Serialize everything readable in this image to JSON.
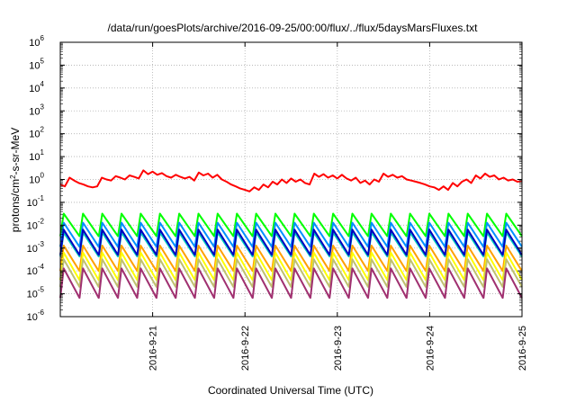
{
  "chart_data": {
    "type": "line",
    "title": "/data/run/goesPlots/archive/2016-09-25/00:00/flux/../flux/5daysMarsFluxes.txt",
    "xlabel": "Coordinated Universal Time (UTC)",
    "ylabel": "protons/cm2-s-sr-MeV",
    "ylabel_parts": {
      "pre": "protons/cm",
      "sup": "2",
      "post": "-s-sr-MeV"
    },
    "y_scale": "log",
    "ylim": [
      1e-06,
      1000000.0
    ],
    "y_ticks": [
      {
        "value": 1000000.0,
        "base": "10",
        "exp": "6"
      },
      {
        "value": 100000.0,
        "base": "10",
        "exp": "5"
      },
      {
        "value": 10000.0,
        "base": "10",
        "exp": "4"
      },
      {
        "value": 1000.0,
        "base": "10",
        "exp": "3"
      },
      {
        "value": 100.0,
        "base": "10",
        "exp": "2"
      },
      {
        "value": 10.0,
        "base": "10",
        "exp": "1"
      },
      {
        "value": 1,
        "base": "10",
        "exp": "0"
      },
      {
        "value": 0.1,
        "base": "10",
        "exp": "-1"
      },
      {
        "value": 0.01,
        "base": "10",
        "exp": "-2"
      },
      {
        "value": 0.001,
        "base": "10",
        "exp": "-3"
      },
      {
        "value": 0.0001,
        "base": "10",
        "exp": "-4"
      },
      {
        "value": 1e-05,
        "base": "10",
        "exp": "-5"
      },
      {
        "value": 1e-06,
        "base": "10",
        "exp": "-6"
      }
    ],
    "xlim": [
      "2016-09-20 00:00",
      "2016-09-25 00:00"
    ],
    "x_ticks": [
      "2016-9-21",
      "2016-9-22",
      "2016-9-23",
      "2016-9-24",
      "2016-9-25"
    ],
    "grid": true,
    "series": [
      {
        "color": "#ff0000",
        "x": [
          0,
          0.05,
          0.1,
          0.15,
          0.2,
          0.25,
          0.3,
          0.35,
          0.4,
          0.45,
          0.5,
          0.55,
          0.6,
          0.65,
          0.7,
          0.75,
          0.8,
          0.85,
          0.9,
          0.95,
          1.0,
          1.05,
          1.1,
          1.15,
          1.2,
          1.25,
          1.3,
          1.35,
          1.4,
          1.45,
          1.5,
          1.55,
          1.6,
          1.65,
          1.7,
          1.75,
          1.8,
          1.85,
          1.9,
          1.95,
          2.0,
          2.05,
          2.1,
          2.15,
          2.2,
          2.25,
          2.3,
          2.35,
          2.4,
          2.45,
          2.5,
          2.55,
          2.6,
          2.65,
          2.7,
          2.75,
          2.8,
          2.85,
          2.9,
          2.95,
          3.0,
          3.05,
          3.1,
          3.15,
          3.2,
          3.25,
          3.3,
          3.35,
          3.4,
          3.45,
          3.5,
          3.55,
          3.6,
          3.65,
          3.7,
          3.75,
          3.8,
          3.85,
          3.9,
          3.95,
          4.0,
          4.05,
          4.1,
          4.15,
          4.2,
          4.25,
          4.3,
          4.35,
          4.4,
          4.45,
          4.5,
          4.55,
          4.6,
          4.65,
          4.7,
          4.75,
          4.8,
          4.85,
          4.9,
          4.95,
          5.0
        ],
        "y": [
          0.6,
          0.5,
          1.2,
          0.9,
          0.7,
          0.6,
          0.5,
          0.45,
          0.5,
          1.2,
          1.0,
          0.9,
          1.4,
          1.2,
          1.0,
          1.5,
          1.3,
          1.1,
          2.5,
          1.7,
          2.2,
          1.6,
          1.9,
          1.4,
          1.2,
          1.6,
          1.3,
          1.1,
          1.3,
          0.9,
          2.0,
          1.5,
          1.8,
          1.2,
          1.6,
          1.0,
          0.8,
          0.6,
          0.5,
          0.4,
          0.35,
          0.3,
          0.45,
          0.35,
          0.6,
          0.45,
          0.8,
          0.6,
          1.0,
          0.7,
          1.1,
          0.8,
          1.0,
          0.7,
          0.6,
          1.8,
          1.3,
          1.7,
          1.2,
          1.5,
          1.1,
          1.6,
          1.1,
          0.9,
          1.2,
          0.7,
          0.9,
          0.6,
          1.0,
          0.8,
          1.8,
          1.3,
          1.6,
          1.2,
          1.4,
          1.0,
          0.9,
          0.8,
          0.7,
          0.6,
          0.5,
          0.45,
          0.35,
          0.5,
          0.35,
          0.7,
          0.5,
          0.8,
          1.0,
          0.7,
          1.5,
          1.1,
          1.8,
          1.3,
          1.5,
          1.0,
          1.2,
          0.9,
          1.0,
          0.8,
          0.85
        ]
      },
      {
        "color": "#00ff00",
        "base": 0.02,
        "pulses": 24,
        "depth": 6
      },
      {
        "color": "#0090ff",
        "base": 0.008,
        "pulses": 24,
        "depth": 7
      },
      {
        "color": "#00d0c0",
        "base": 0.003,
        "pulses": 24,
        "depth": 7
      },
      {
        "color": "#0000c0",
        "base": 0.004,
        "pulses": 24,
        "depth": 8
      },
      {
        "color": "#ffa000",
        "base": 0.0008,
        "pulses": 24,
        "depth": 8
      },
      {
        "color": "#ffff00",
        "base": 0.0004,
        "pulses": 24,
        "depth": 10
      },
      {
        "color": "#c0c070",
        "base": 0.0002,
        "pulses": 24,
        "depth": 10
      },
      {
        "color": "#a03070",
        "base": 8e-05,
        "pulses": 24,
        "depth": 12
      }
    ]
  }
}
